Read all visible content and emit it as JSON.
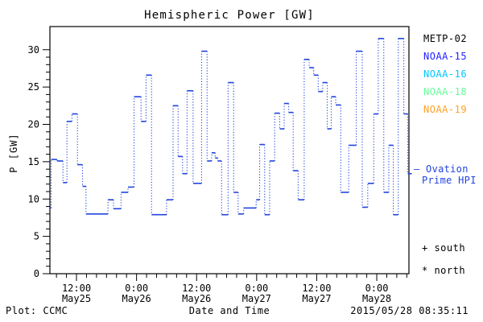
{
  "window": {
    "title": "Hemispheric Power [GW]"
  },
  "chart_data": {
    "type": "line",
    "style": "step-post; solid horizontal segments with dotted vertical connectors",
    "title": "Hemispheric Power [GW]",
    "xlabel": "Date and Time",
    "ylabel": "P [GW]",
    "x_unit": "hours since 2015-05-25 00:00",
    "xlim": [
      6.69,
      78.43
    ],
    "ylim": [
      0,
      33.1
    ],
    "y_major_ticks": [
      0,
      5,
      10,
      15,
      20,
      25,
      30
    ],
    "y_minor_step": 1,
    "x_minor_step": 2,
    "x_major_ticks": [
      {
        "t": 12,
        "time": "12:00",
        "date": "May25"
      },
      {
        "t": 24,
        "time": "0:00",
        "date": "May26"
      },
      {
        "t": 36,
        "time": "12:00",
        "date": "May26"
      },
      {
        "t": 48,
        "time": "0:00",
        "date": "May27"
      },
      {
        "t": 60,
        "time": "12:00",
        "date": "May27"
      },
      {
        "t": 72,
        "time": "0:00",
        "date": "May28"
      }
    ],
    "grid": false,
    "legend_position": "right-outside",
    "line_color": "#2244dd",
    "series_name": "Ovation Prime HPI (NOAA-15)",
    "points": [
      [
        6.69,
        8.8
      ],
      [
        6.95,
        15.3
      ],
      [
        8.1,
        15.1
      ],
      [
        9.3,
        12.2
      ],
      [
        10.1,
        20.4
      ],
      [
        11.1,
        21.4
      ],
      [
        12.2,
        14.6
      ],
      [
        13.2,
        11.7
      ],
      [
        13.9,
        8.0
      ],
      [
        18.3,
        9.9
      ],
      [
        19.4,
        8.7
      ],
      [
        20.9,
        10.9
      ],
      [
        22.3,
        11.6
      ],
      [
        23.5,
        23.7
      ],
      [
        24.9,
        20.4
      ],
      [
        25.9,
        26.6
      ],
      [
        27.0,
        7.9
      ],
      [
        30.0,
        9.9
      ],
      [
        31.3,
        22.5
      ],
      [
        32.3,
        15.7
      ],
      [
        33.2,
        13.4
      ],
      [
        34.1,
        24.5
      ],
      [
        35.3,
        12.1
      ],
      [
        37.0,
        29.8
      ],
      [
        38.1,
        15.1
      ],
      [
        39.0,
        16.2
      ],
      [
        39.7,
        15.5
      ],
      [
        40.2,
        15.1
      ],
      [
        41.0,
        7.9
      ],
      [
        42.3,
        25.6
      ],
      [
        43.4,
        10.9
      ],
      [
        44.3,
        8.0
      ],
      [
        45.4,
        8.8
      ],
      [
        47.9,
        9.9
      ],
      [
        48.6,
        17.3
      ],
      [
        49.6,
        7.9
      ],
      [
        50.6,
        15.1
      ],
      [
        51.6,
        21.5
      ],
      [
        52.6,
        19.4
      ],
      [
        53.5,
        22.8
      ],
      [
        54.4,
        21.6
      ],
      [
        55.3,
        13.8
      ],
      [
        56.3,
        9.9
      ],
      [
        57.5,
        28.7
      ],
      [
        58.5,
        27.6
      ],
      [
        59.4,
        26.6
      ],
      [
        60.3,
        24.4
      ],
      [
        61.2,
        25.6
      ],
      [
        62.1,
        19.4
      ],
      [
        62.9,
        23.7
      ],
      [
        63.8,
        22.6
      ],
      [
        64.8,
        10.9
      ],
      [
        66.4,
        17.2
      ],
      [
        67.9,
        29.8
      ],
      [
        69.1,
        8.9
      ],
      [
        70.2,
        12.1
      ],
      [
        71.4,
        21.4
      ],
      [
        72.3,
        31.5
      ],
      [
        73.4,
        10.9
      ],
      [
        74.4,
        17.2
      ],
      [
        75.3,
        7.9
      ],
      [
        76.3,
        31.5
      ],
      [
        77.4,
        21.4
      ],
      [
        78.2,
        13.4
      ],
      [
        79.0,
        13.4
      ]
    ]
  },
  "legend": {
    "items": [
      {
        "label": "METP-02",
        "color": "#000000"
      },
      {
        "label": "NOAA-15",
        "color": "#2222ff"
      },
      {
        "label": "NOAA-16",
        "color": "#00c8ff"
      },
      {
        "label": "NOAA-18",
        "color": "#66ff99"
      },
      {
        "label": "NOAA-19",
        "color": "#ffa126"
      }
    ]
  },
  "annotations": {
    "ovation_line1": "— Ovation",
    "ovation_line2": "Prime HPI",
    "ovation_color": "#2244dd",
    "south_label": "+ south",
    "north_label": "* north"
  },
  "footer": {
    "credit": "Plot: CCMC",
    "xlabel": "Date and Time",
    "timestamp": "2015/05/28 08:35:11"
  }
}
